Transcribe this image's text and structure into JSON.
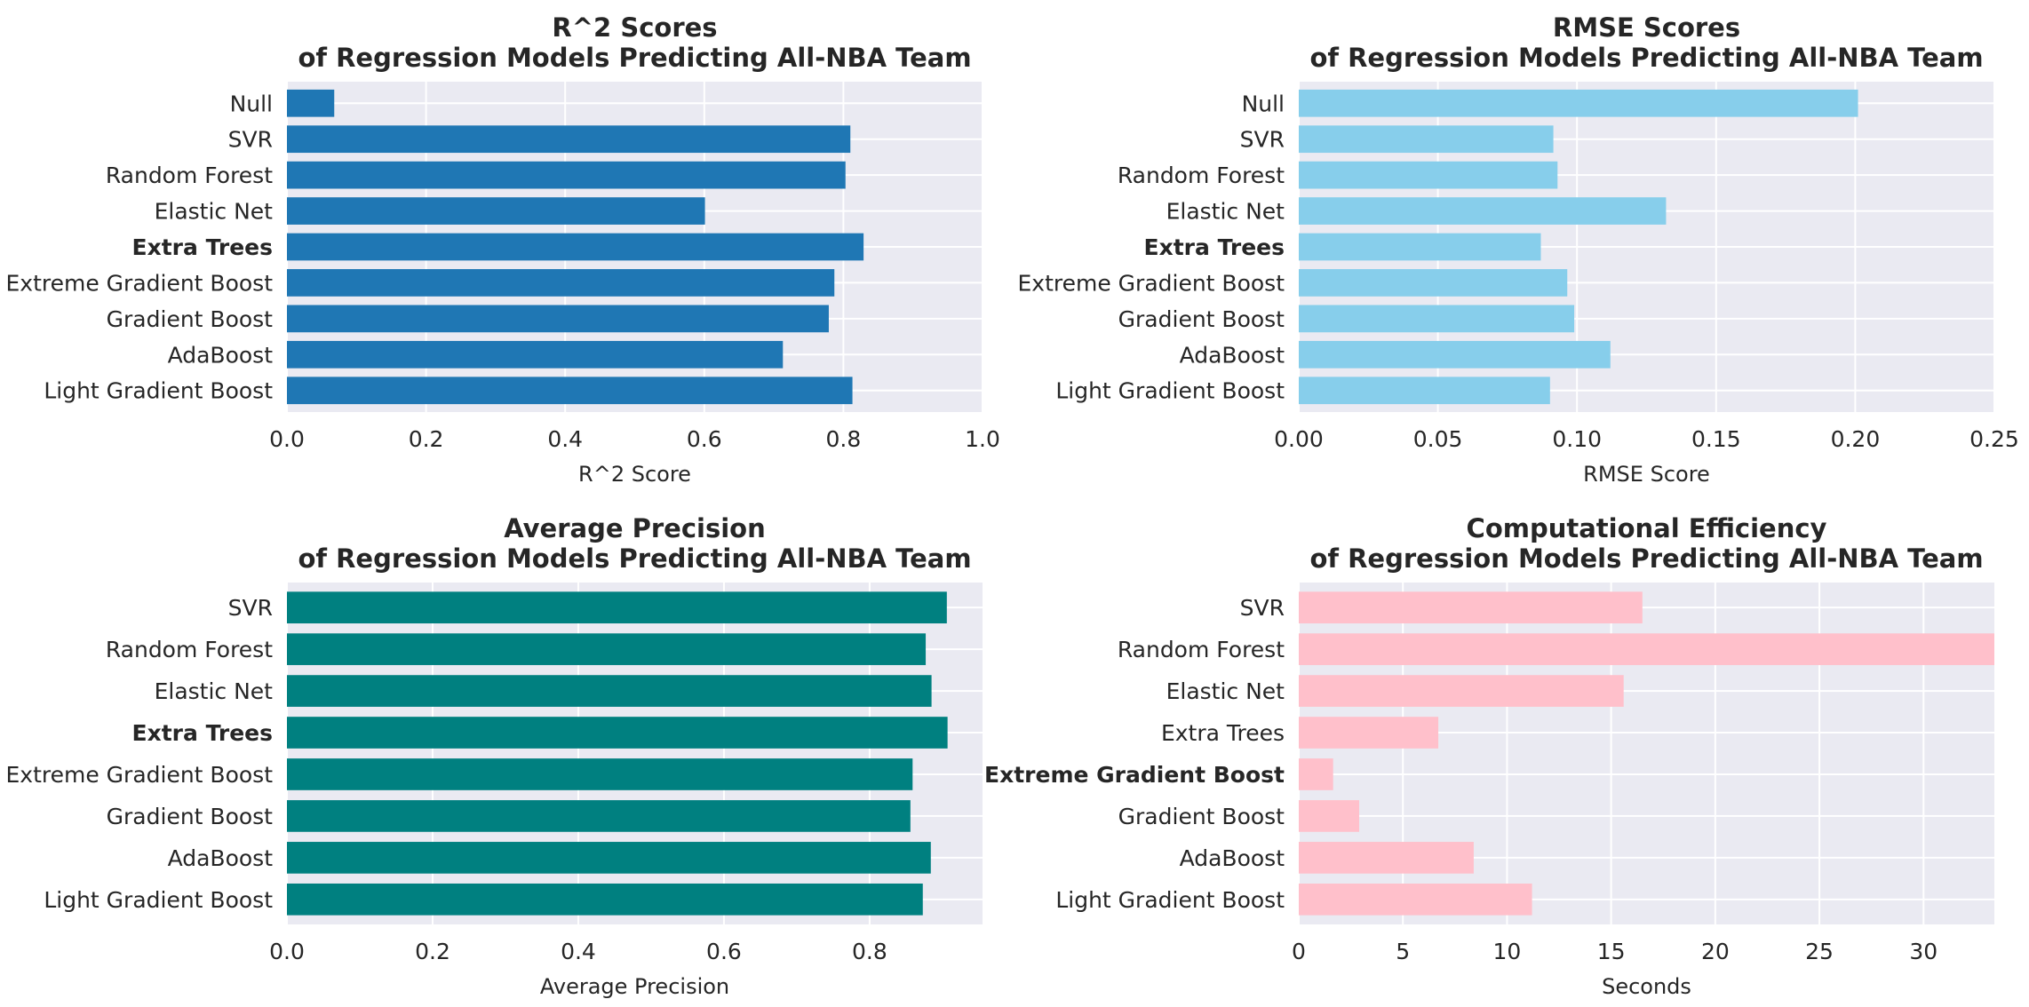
{
  "chart_data": [
    {
      "type": "bar",
      "orientation": "horizontal",
      "title_line1": "R^2 Scores",
      "title_line2": "of Regression Models Predicting All-NBA Team",
      "xlabel": "R^2 Score",
      "categories": [
        "Null",
        "SVR",
        "Random Forest",
        "Elastic Net",
        "Extra Trees",
        "Extreme Gradient Boost",
        "Gradient Boost",
        "AdaBoost",
        "Light Gradient Boost"
      ],
      "highlight": "Extra Trees",
      "values": [
        0.068,
        0.81,
        0.803,
        0.601,
        0.829,
        0.787,
        0.779,
        0.713,
        0.813
      ],
      "xlim": [
        0,
        1.0
      ],
      "xticks": [
        "0.0",
        "0.2",
        "0.4",
        "0.6",
        "0.8",
        "1.0"
      ],
      "xtick_values": [
        0,
        0.2,
        0.4,
        0.6,
        0.8,
        1.0
      ],
      "color": "#1f77b4",
      "grid": true
    },
    {
      "type": "bar",
      "orientation": "horizontal",
      "title_line1": "RMSE Scores",
      "title_line2": "of Regression Models Predicting All-NBA Team",
      "xlabel": "RMSE Score",
      "categories": [
        "Null",
        "SVR",
        "Random Forest",
        "Elastic Net",
        "Extra Trees",
        "Extreme Gradient Boost",
        "Gradient Boost",
        "AdaBoost",
        "Light Gradient Boost"
      ],
      "highlight": "Extra Trees",
      "values": [
        0.201,
        0.0915,
        0.093,
        0.132,
        0.087,
        0.0965,
        0.099,
        0.112,
        0.0903
      ],
      "xlim": [
        0,
        0.25
      ],
      "xticks": [
        "0.00",
        "0.05",
        "0.10",
        "0.15",
        "0.20",
        "0.25"
      ],
      "xtick_values": [
        0,
        0.05,
        0.1,
        0.15,
        0.2,
        0.25
      ],
      "color": "#87ceeb",
      "grid": true
    },
    {
      "type": "bar",
      "orientation": "horizontal",
      "title_line1": "Average Precision",
      "title_line2": "of Regression Models Predicting All-NBA Team",
      "xlabel": "Average Precision",
      "categories": [
        "SVR",
        "Random Forest",
        "Elastic Net",
        "Extra Trees",
        "Extreme Gradient Boost",
        "Gradient Boost",
        "AdaBoost",
        "Light Gradient Boost"
      ],
      "highlight": "Extra Trees",
      "values": [
        0.906,
        0.877,
        0.885,
        0.907,
        0.859,
        0.856,
        0.884,
        0.873
      ],
      "xlim": [
        0,
        0.955
      ],
      "xticks": [
        "0.0",
        "0.2",
        "0.4",
        "0.6",
        "0.8"
      ],
      "xtick_values": [
        0,
        0.2,
        0.4,
        0.6,
        0.8
      ],
      "color": "#008080",
      "grid": true
    },
    {
      "type": "bar",
      "orientation": "horizontal",
      "title_line1": "Computational Efficiency",
      "title_line2": "of Regression Models Predicting All-NBA Team",
      "xlabel": "Seconds",
      "categories": [
        "SVR",
        "Random Forest",
        "Elastic Net",
        "Extra Trees",
        "Extreme Gradient Boost",
        "Gradient Boost",
        "AdaBoost",
        "Light Gradient Boost"
      ],
      "highlight": "Extreme Gradient Boost",
      "values": [
        16.5,
        33.4,
        15.6,
        6.7,
        1.65,
        2.9,
        8.4,
        11.2
      ],
      "xlim": [
        0,
        33.4
      ],
      "xticks": [
        "0",
        "5",
        "10",
        "15",
        "20",
        "25",
        "30"
      ],
      "xtick_values": [
        0,
        5,
        10,
        15,
        20,
        25,
        30
      ],
      "color": "#ffc0cb",
      "grid": true
    }
  ]
}
